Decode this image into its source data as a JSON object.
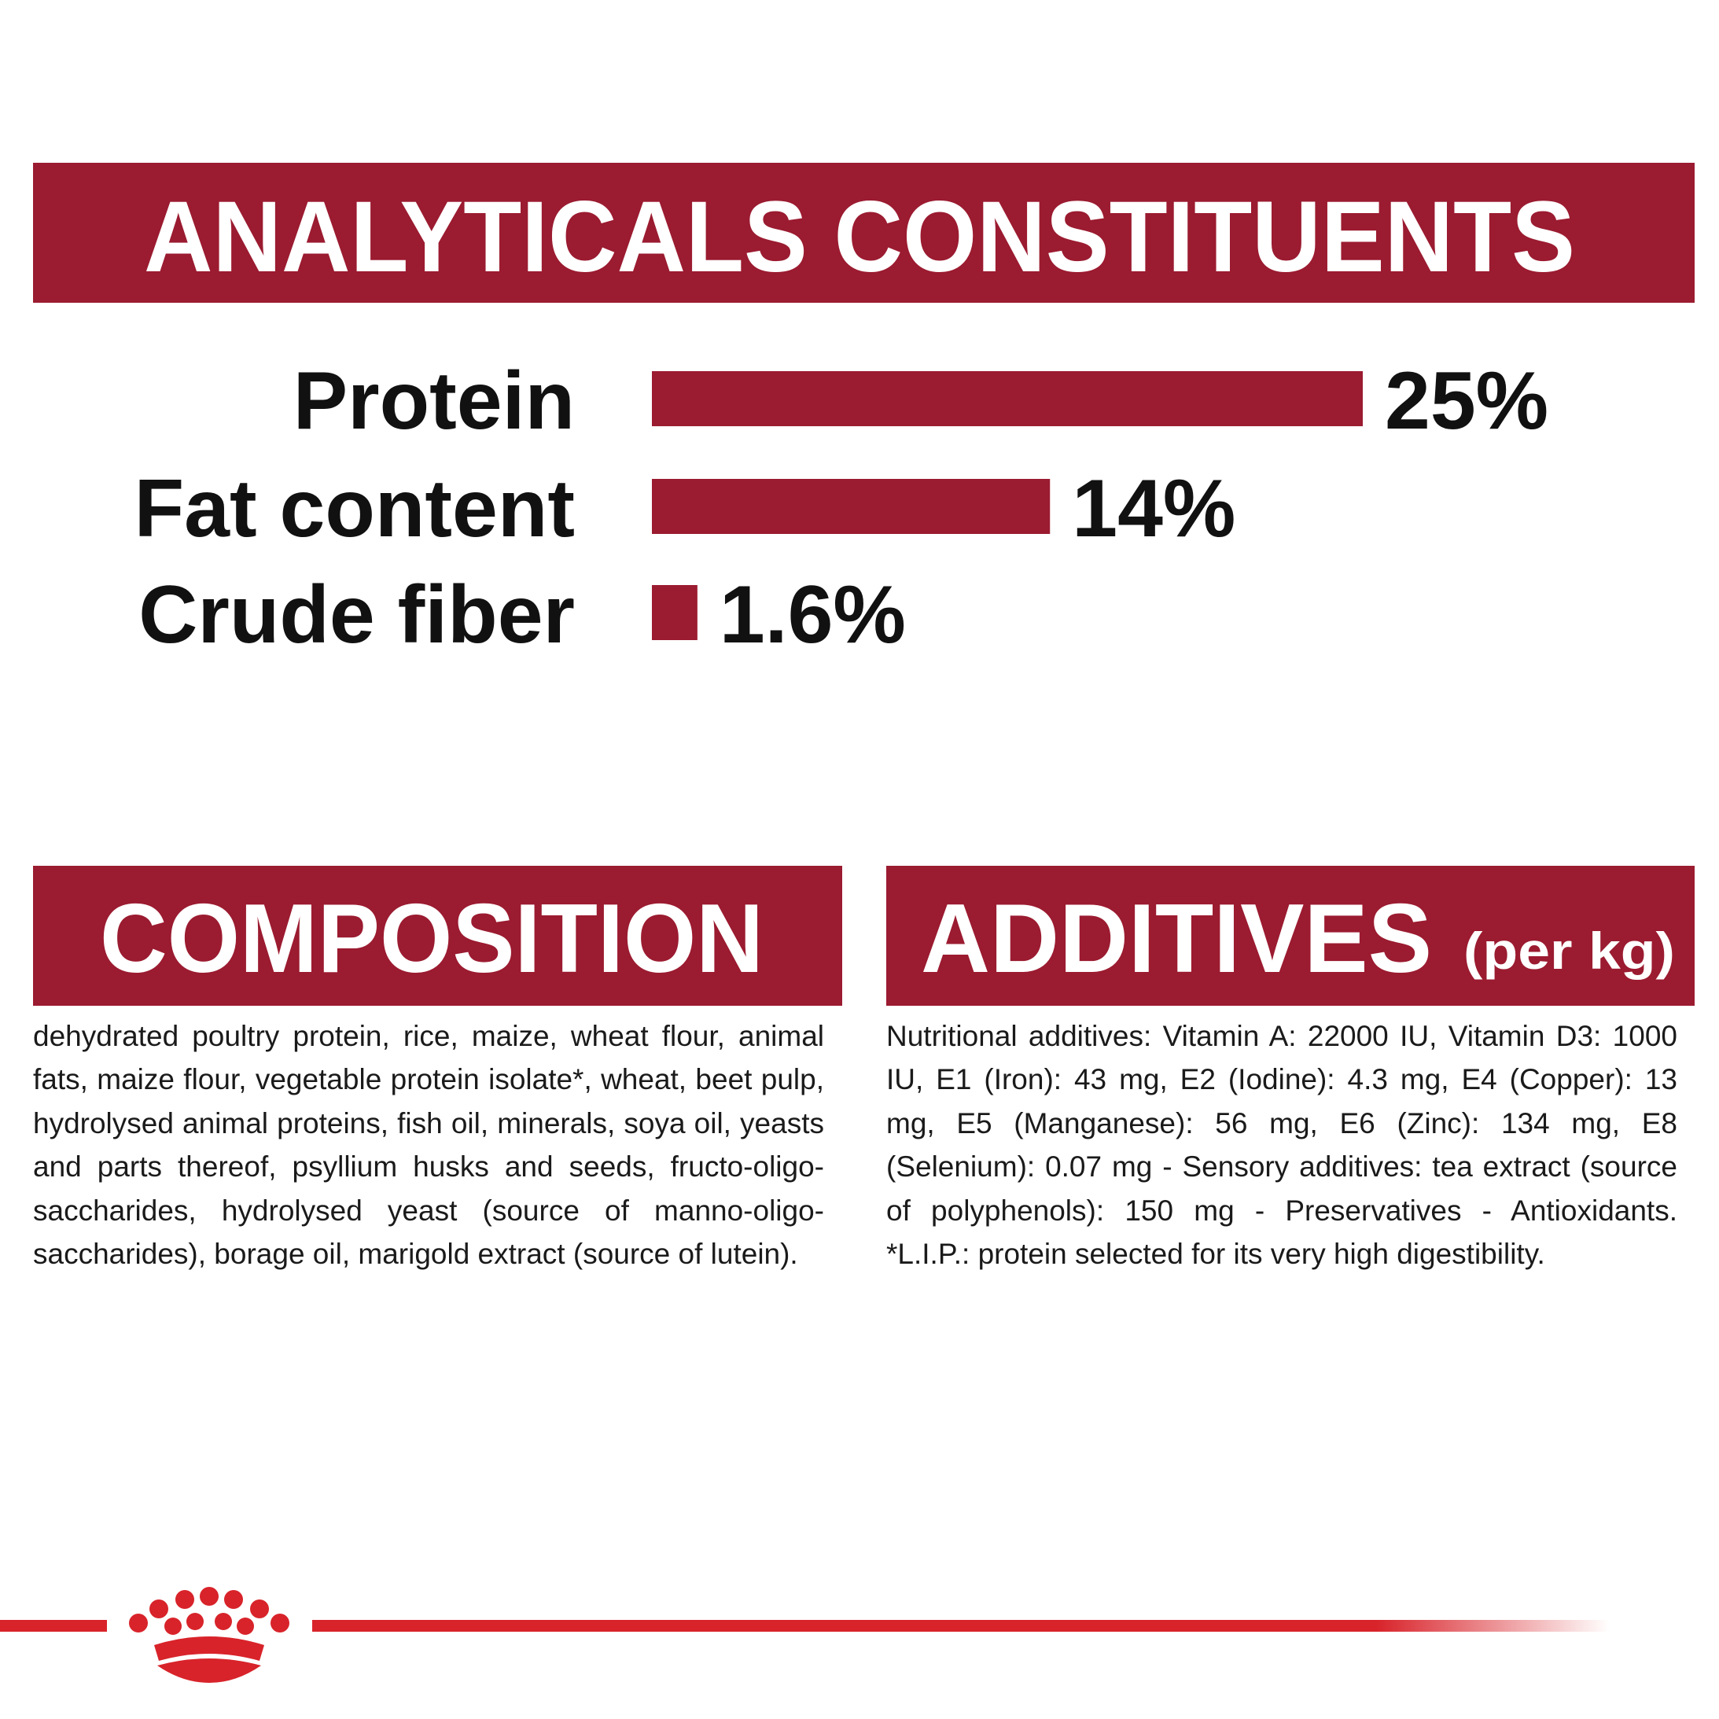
{
  "chart_data": {
    "type": "bar",
    "title": "ANALYTICALS CONSTITUENTS",
    "categories": [
      "Protein",
      "Fat content",
      "Crude fiber"
    ],
    "values": [
      25,
      14,
      1.6
    ],
    "value_labels": [
      "25%",
      "14%",
      "1.6%"
    ],
    "color": "#9b1b30"
  },
  "composition": {
    "title": "COMPOSITION",
    "text": "dehydrated poultry protein, rice, maize, wheat flour, animal fats, maize flour, vegetable protein isolate*, wheat, beet pulp, hydrolysed animal proteins, fish oil, minerals, soya oil, yeasts and parts thereof, psyllium husks and seeds, fructo-oligo-saccharides, hydrolysed yeast (source of manno-oligo-saccharides), borage oil, marigold extract (source of lutein)."
  },
  "additives": {
    "title": "ADDITIVES",
    "unit": "(per kg)",
    "text": "Nutritional additives: Vitamin A: 22000 IU, Vitamin D3: 1000 IU, E1 (Iron): 43 mg, E2 (Iodine): 4.3 mg, E4 (Copper): 13 mg, E5 (Manganese): 56 mg, E6 (Zinc): 134 mg, E8 (Selenium): 0.07 mg - Sensory additives: tea extract (source of polyphenols): 150 mg - Preservatives - Antioxidants. *L.I.P.: protein selected for its very high digestibility."
  }
}
